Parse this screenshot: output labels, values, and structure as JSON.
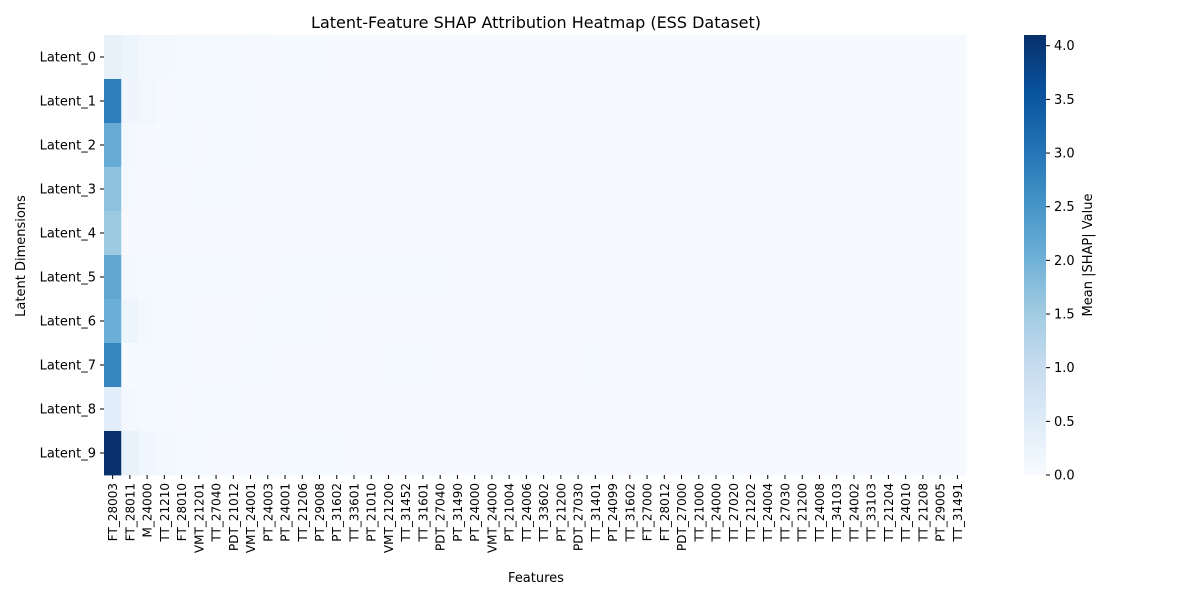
{
  "chart_data": {
    "type": "heatmap",
    "title": "Latent-Feature SHAP Attribution Heatmap (ESS Dataset)",
    "xlabel": "Features",
    "ylabel": "Latent Dimensions",
    "rows": [
      "Latent_0",
      "Latent_1",
      "Latent_2",
      "Latent_3",
      "Latent_4",
      "Latent_5",
      "Latent_6",
      "Latent_7",
      "Latent_8",
      "Latent_9"
    ],
    "tick_labels": [
      "FT_28003",
      "FT_28011",
      "M_24000",
      "TT_21210",
      "FT_28010",
      "VMT_21201",
      "TT_27040",
      "PDT_21012",
      "VMT_24001",
      "PT_24003",
      "PT_24001",
      "TT_21206",
      "PT_29008",
      "PT_31602",
      "TT_33601",
      "PT_21010",
      "VMT_21200",
      "TT_31452",
      "TT_31601",
      "PDT_27040",
      "PT_31490",
      "PT_24000",
      "VMT_24000",
      "PT_21004",
      "TT_24006",
      "TT_33602",
      "PT_21200",
      "PDT_27030",
      "TT_31401",
      "PT_24099",
      "TT_31602",
      "FT_27000",
      "FT_28012",
      "PDT_27000",
      "TT_21000",
      "TT_24000",
      "TT_27020",
      "TT_21202",
      "TT_24004",
      "TT_27030",
      "TT_21200",
      "TT_24008",
      "TT_34103",
      "TT_24002",
      "TT_33103",
      "TT_21204",
      "TT_24010",
      "TT_21208",
      "PT_29005",
      "TT_31491"
    ],
    "n_columns": 50,
    "values": [
      [
        0.32,
        0.22,
        0.12,
        0.1,
        0.08,
        0.07,
        0.06,
        0.06,
        0.05,
        0.05,
        0.04,
        0.04,
        0.04,
        0.03,
        0.03,
        0.03,
        0.03,
        0.02,
        0.02,
        0.02,
        0.02,
        0.02,
        0.02,
        0.02,
        0.02,
        0.02,
        0.02,
        0.02,
        0.02,
        0.02,
        0.02,
        0.02,
        0.02,
        0.02,
        0.02,
        0.02,
        0.02,
        0.02,
        0.02,
        0.02,
        0.02,
        0.02,
        0.02,
        0.02,
        0.02,
        0.02,
        0.02,
        0.02,
        0.02,
        0.02
      ],
      [
        2.85,
        0.18,
        0.14,
        0.05,
        0.04,
        0.04,
        0.04,
        0.04,
        0.04,
        0.03,
        0.03,
        0.02,
        0.02,
        0.02,
        0.02,
        0.02,
        0.02,
        0.02,
        0.02,
        0.02,
        0.02,
        0.02,
        0.02,
        0.02,
        0.02,
        0.02,
        0.02,
        0.02,
        0.02,
        0.02,
        0.02,
        0.02,
        0.02,
        0.02,
        0.02,
        0.02,
        0.02,
        0.02,
        0.02,
        0.02,
        0.02,
        0.02,
        0.02,
        0.02,
        0.02,
        0.02,
        0.02,
        0.02,
        0.02,
        0.02
      ],
      [
        2.1,
        0.1,
        0.05,
        0.04,
        0.04,
        0.05,
        0.04,
        0.04,
        0.04,
        0.03,
        0.03,
        0.03,
        0.03,
        0.03,
        0.02,
        0.02,
        0.02,
        0.02,
        0.02,
        0.02,
        0.02,
        0.02,
        0.02,
        0.02,
        0.02,
        0.02,
        0.02,
        0.02,
        0.02,
        0.02,
        0.02,
        0.02,
        0.02,
        0.02,
        0.02,
        0.02,
        0.02,
        0.02,
        0.02,
        0.02,
        0.02,
        0.02,
        0.02,
        0.02,
        0.02,
        0.02,
        0.02,
        0.02,
        0.02,
        0.02
      ],
      [
        1.7,
        0.06,
        0.05,
        0.05,
        0.05,
        0.04,
        0.04,
        0.04,
        0.03,
        0.03,
        0.03,
        0.03,
        0.03,
        0.03,
        0.03,
        0.03,
        0.03,
        0.03,
        0.02,
        0.02,
        0.02,
        0.02,
        0.02,
        0.02,
        0.02,
        0.02,
        0.02,
        0.02,
        0.02,
        0.02,
        0.02,
        0.02,
        0.02,
        0.02,
        0.02,
        0.02,
        0.02,
        0.02,
        0.02,
        0.02,
        0.02,
        0.02,
        0.02,
        0.02,
        0.02,
        0.02,
        0.02,
        0.02,
        0.02,
        0.02
      ],
      [
        1.55,
        0.03,
        0.03,
        0.03,
        0.03,
        0.03,
        0.03,
        0.03,
        0.02,
        0.02,
        0.02,
        0.02,
        0.02,
        0.02,
        0.02,
        0.02,
        0.02,
        0.02,
        0.02,
        0.02,
        0.02,
        0.02,
        0.02,
        0.02,
        0.02,
        0.02,
        0.02,
        0.02,
        0.02,
        0.02,
        0.02,
        0.02,
        0.02,
        0.02,
        0.02,
        0.02,
        0.02,
        0.02,
        0.02,
        0.02,
        0.02,
        0.02,
        0.02,
        0.02,
        0.02,
        0.02,
        0.02,
        0.02,
        0.02,
        0.02
      ],
      [
        2.2,
        0.1,
        0.08,
        0.07,
        0.06,
        0.06,
        0.06,
        0.06,
        0.05,
        0.05,
        0.04,
        0.04,
        0.04,
        0.04,
        0.04,
        0.04,
        0.04,
        0.04,
        0.04,
        0.04,
        0.03,
        0.03,
        0.03,
        0.03,
        0.03,
        0.03,
        0.03,
        0.03,
        0.03,
        0.03,
        0.02,
        0.02,
        0.02,
        0.02,
        0.02,
        0.02,
        0.02,
        0.02,
        0.02,
        0.02,
        0.02,
        0.02,
        0.02,
        0.02,
        0.02,
        0.02,
        0.02,
        0.02,
        0.02,
        0.02
      ],
      [
        2.05,
        0.2,
        0.1,
        0.08,
        0.06,
        0.05,
        0.05,
        0.05,
        0.05,
        0.04,
        0.04,
        0.04,
        0.04,
        0.03,
        0.03,
        0.03,
        0.03,
        0.03,
        0.03,
        0.03,
        0.03,
        0.03,
        0.03,
        0.03,
        0.03,
        0.03,
        0.03,
        0.03,
        0.03,
        0.03,
        0.02,
        0.02,
        0.02,
        0.02,
        0.02,
        0.02,
        0.02,
        0.02,
        0.02,
        0.02,
        0.02,
        0.02,
        0.02,
        0.02,
        0.02,
        0.02,
        0.02,
        0.02,
        0.02,
        0.02
      ],
      [
        2.75,
        0.04,
        0.04,
        0.04,
        0.04,
        0.05,
        0.05,
        0.05,
        0.04,
        0.04,
        0.03,
        0.03,
        0.03,
        0.03,
        0.03,
        0.03,
        0.04,
        0.04,
        0.04,
        0.03,
        0.03,
        0.03,
        0.03,
        0.03,
        0.03,
        0.03,
        0.03,
        0.03,
        0.04,
        0.03,
        0.02,
        0.02,
        0.02,
        0.02,
        0.02,
        0.02,
        0.02,
        0.02,
        0.02,
        0.02,
        0.02,
        0.02,
        0.02,
        0.02,
        0.02,
        0.02,
        0.02,
        0.02,
        0.02,
        0.02
      ],
      [
        0.45,
        0.1,
        0.08,
        0.06,
        0.05,
        0.04,
        0.04,
        0.04,
        0.03,
        0.03,
        0.03,
        0.03,
        0.02,
        0.02,
        0.02,
        0.02,
        0.02,
        0.02,
        0.02,
        0.02,
        0.02,
        0.02,
        0.02,
        0.02,
        0.02,
        0.02,
        0.02,
        0.02,
        0.02,
        0.02,
        0.02,
        0.02,
        0.02,
        0.02,
        0.02,
        0.02,
        0.02,
        0.02,
        0.02,
        0.02,
        0.02,
        0.02,
        0.02,
        0.02,
        0.02,
        0.02,
        0.02,
        0.02,
        0.02,
        0.02
      ],
      [
        4.1,
        0.3,
        0.15,
        0.1,
        0.08,
        0.06,
        0.05,
        0.05,
        0.05,
        0.05,
        0.04,
        0.04,
        0.04,
        0.04,
        0.03,
        0.03,
        0.03,
        0.03,
        0.03,
        0.03,
        0.03,
        0.03,
        0.03,
        0.03,
        0.03,
        0.03,
        0.03,
        0.03,
        0.03,
        0.03,
        0.02,
        0.02,
        0.02,
        0.02,
        0.02,
        0.02,
        0.02,
        0.02,
        0.02,
        0.02,
        0.02,
        0.02,
        0.02,
        0.02,
        0.02,
        0.02,
        0.02,
        0.02,
        0.02,
        0.02
      ]
    ],
    "colormap": "Blues",
    "color_low": "#f7fbff",
    "color_high": "#08306b",
    "zlim": [
      0,
      4.1
    ],
    "colorbar": {
      "label": "Mean |SHAP| Value",
      "ticks": [
        "0.0",
        "0.5",
        "1.0",
        "1.5",
        "2.0",
        "2.5",
        "3.0",
        "3.5",
        "4.0"
      ],
      "tick_values": [
        0,
        0.5,
        1.0,
        1.5,
        2.0,
        2.5,
        3.0,
        3.5,
        4.0
      ]
    },
    "grid": false,
    "legend": "none"
  }
}
